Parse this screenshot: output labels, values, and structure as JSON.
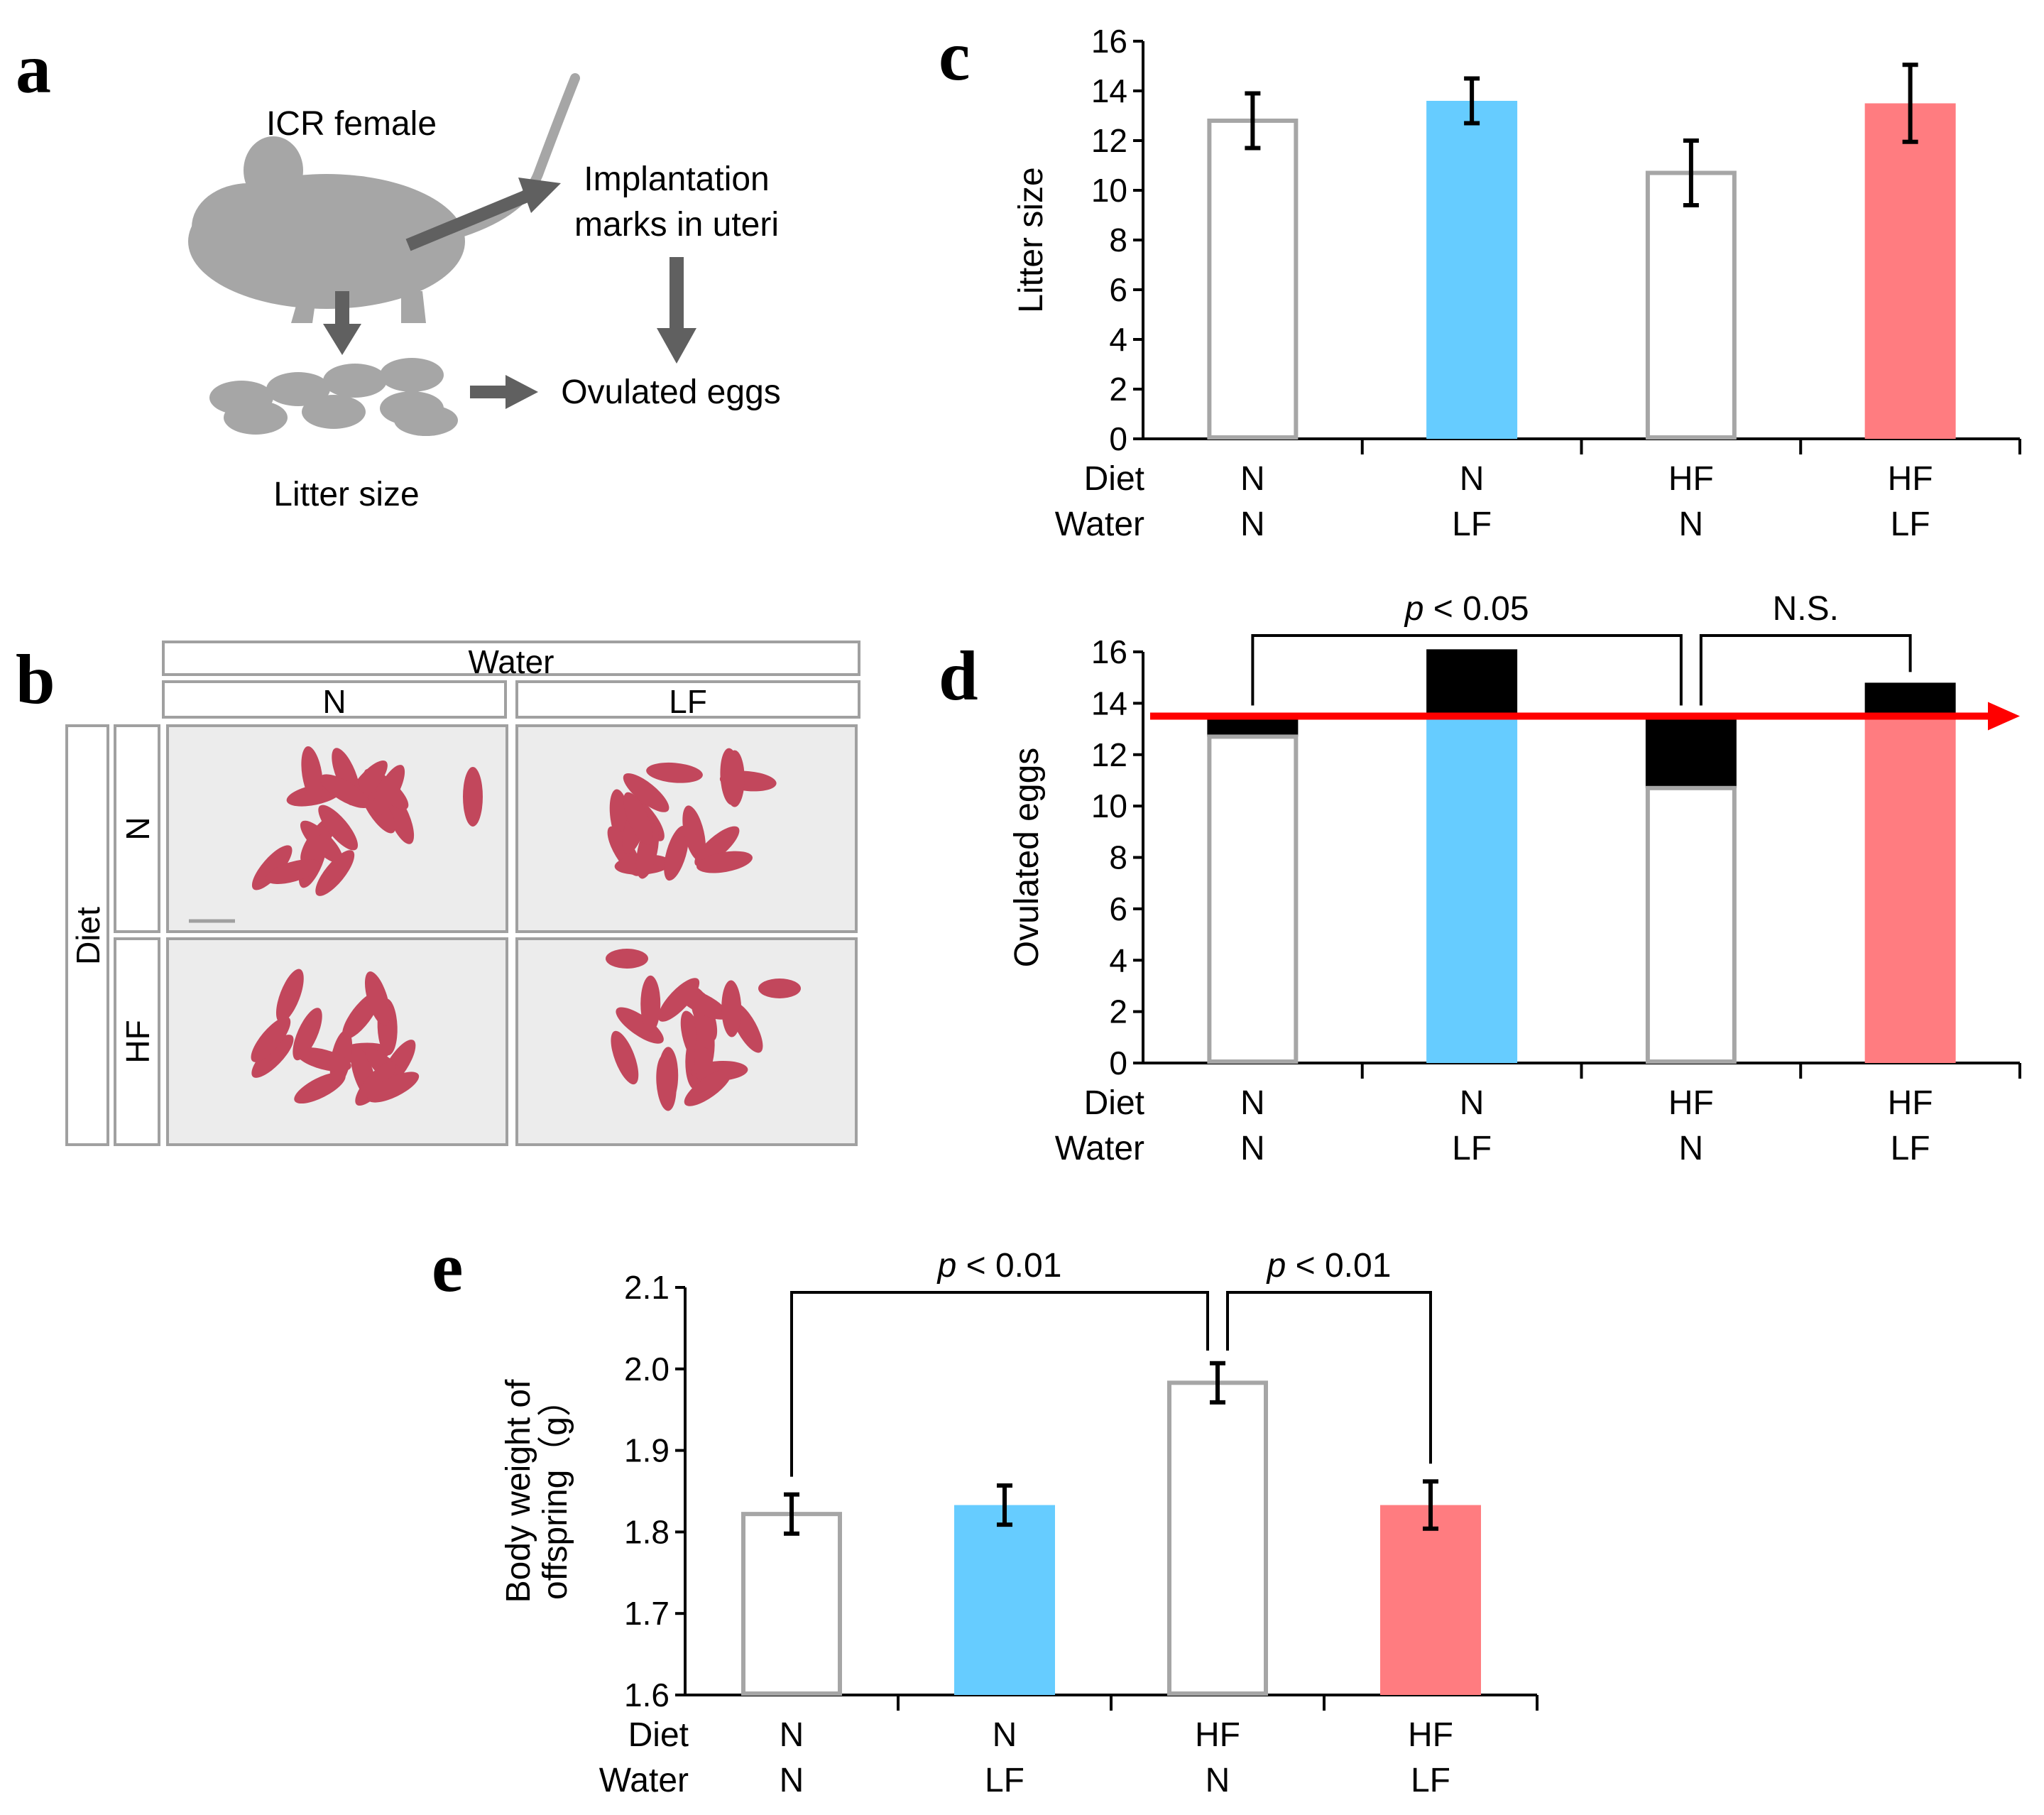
{
  "figure": {
    "panel_labels": {
      "a": "a",
      "b": "b",
      "c": "c",
      "d": "d",
      "e": "e"
    },
    "colors": {
      "axis": "#000000",
      "open_bar": "#a6a6a6",
      "blue": "#66ccff",
      "red": "#ff7c80",
      "arrow_red": "#ff0000",
      "schematic_grey": "#a6a6a6",
      "arrow_grey": "#606060",
      "box_border": "#a0a0a0",
      "photo_bg": "#ececec",
      "pup": "#c2475c"
    }
  },
  "panel_a": {
    "icr_female": "ICR female",
    "implantation_line1": "Implantation",
    "implantation_line2": "marks in uteri",
    "ovulated_eggs": "Ovulated eggs",
    "litter_size": "Litter size",
    "mouse_icon": "mouse-icon",
    "pups_icon": "pups-icon"
  },
  "panel_b": {
    "water_header": "Water",
    "water_n": "N",
    "water_lf": "LF",
    "diet_header": "Diet",
    "diet_n": "N",
    "diet_hf": "HF",
    "photo_icon": "pup-litter-photo"
  },
  "chart_data": [
    {
      "id": "c",
      "type": "bar",
      "ylabel": "Litter size",
      "ylim": [
        0,
        16
      ],
      "yticks": [
        "0",
        "2",
        "4",
        "6",
        "8",
        "10",
        "12",
        "14",
        "16"
      ],
      "row_labels": [
        "Diet",
        "Water"
      ],
      "categories": [
        {
          "diet": "N",
          "water": "N",
          "style": "open",
          "value": 12.8,
          "error": 1.1
        },
        {
          "diet": "N",
          "water": "LF",
          "style": "blue",
          "value": 13.6,
          "error": 0.9
        },
        {
          "diet": "HF",
          "water": "N",
          "style": "open",
          "value": 10.7,
          "error": 1.3
        },
        {
          "diet": "HF",
          "water": "LF",
          "style": "red",
          "value": 13.5,
          "error": 1.55
        }
      ]
    },
    {
      "id": "d",
      "type": "bar",
      "ylabel": "Ovulated eggs",
      "ylim": [
        0,
        16
      ],
      "yticks": [
        "0",
        "2",
        "4",
        "6",
        "8",
        "10",
        "12",
        "14",
        "16"
      ],
      "row_labels": [
        "Diet",
        "Water"
      ],
      "reference_line": 13.5,
      "categories": [
        {
          "diet": "N",
          "water": "N",
          "style": "open",
          "value": 12.7,
          "ovulated": 13.5
        },
        {
          "diet": "N",
          "water": "LF",
          "style": "blue",
          "value": 13.6,
          "ovulated": 16.1
        },
        {
          "diet": "HF",
          "water": "N",
          "style": "open",
          "value": 10.7,
          "ovulated": 13.5
        },
        {
          "diet": "HF",
          "water": "LF",
          "style": "red",
          "value": 13.6,
          "ovulated": 14.8
        }
      ],
      "annotations": [
        {
          "p_symbol": "p",
          "text": " < 0.05",
          "from": 0,
          "to": 2
        },
        {
          "p_symbol": "",
          "text": "N.S.",
          "from": 2,
          "to": 3
        }
      ]
    },
    {
      "id": "e",
      "type": "bar",
      "ylabel_line1": "Body weight of",
      "ylabel_line2": "offspring（g）",
      "ylim": [
        1.6,
        2.1
      ],
      "yticks": [
        "1.6",
        "1.7",
        "1.8",
        "1.9",
        "2.0",
        "2.1"
      ],
      "row_labels": [
        "Diet",
        "Water"
      ],
      "categories": [
        {
          "diet": "N",
          "water": "N",
          "style": "open",
          "value": 1.822,
          "error": 0.024
        },
        {
          "diet": "N",
          "water": "LF",
          "style": "blue",
          "value": 1.833,
          "error": 0.024
        },
        {
          "diet": "HF",
          "water": "N",
          "style": "open",
          "value": 1.983,
          "error": 0.024
        },
        {
          "diet": "HF",
          "water": "LF",
          "style": "red",
          "value": 1.833,
          "error": 0.029
        }
      ],
      "annotations": [
        {
          "p_symbol": "p",
          "text": " < 0.01",
          "from": 0,
          "to": 2
        },
        {
          "p_symbol": "p",
          "text": " < 0.01",
          "from": 2,
          "to": 3
        }
      ]
    }
  ]
}
